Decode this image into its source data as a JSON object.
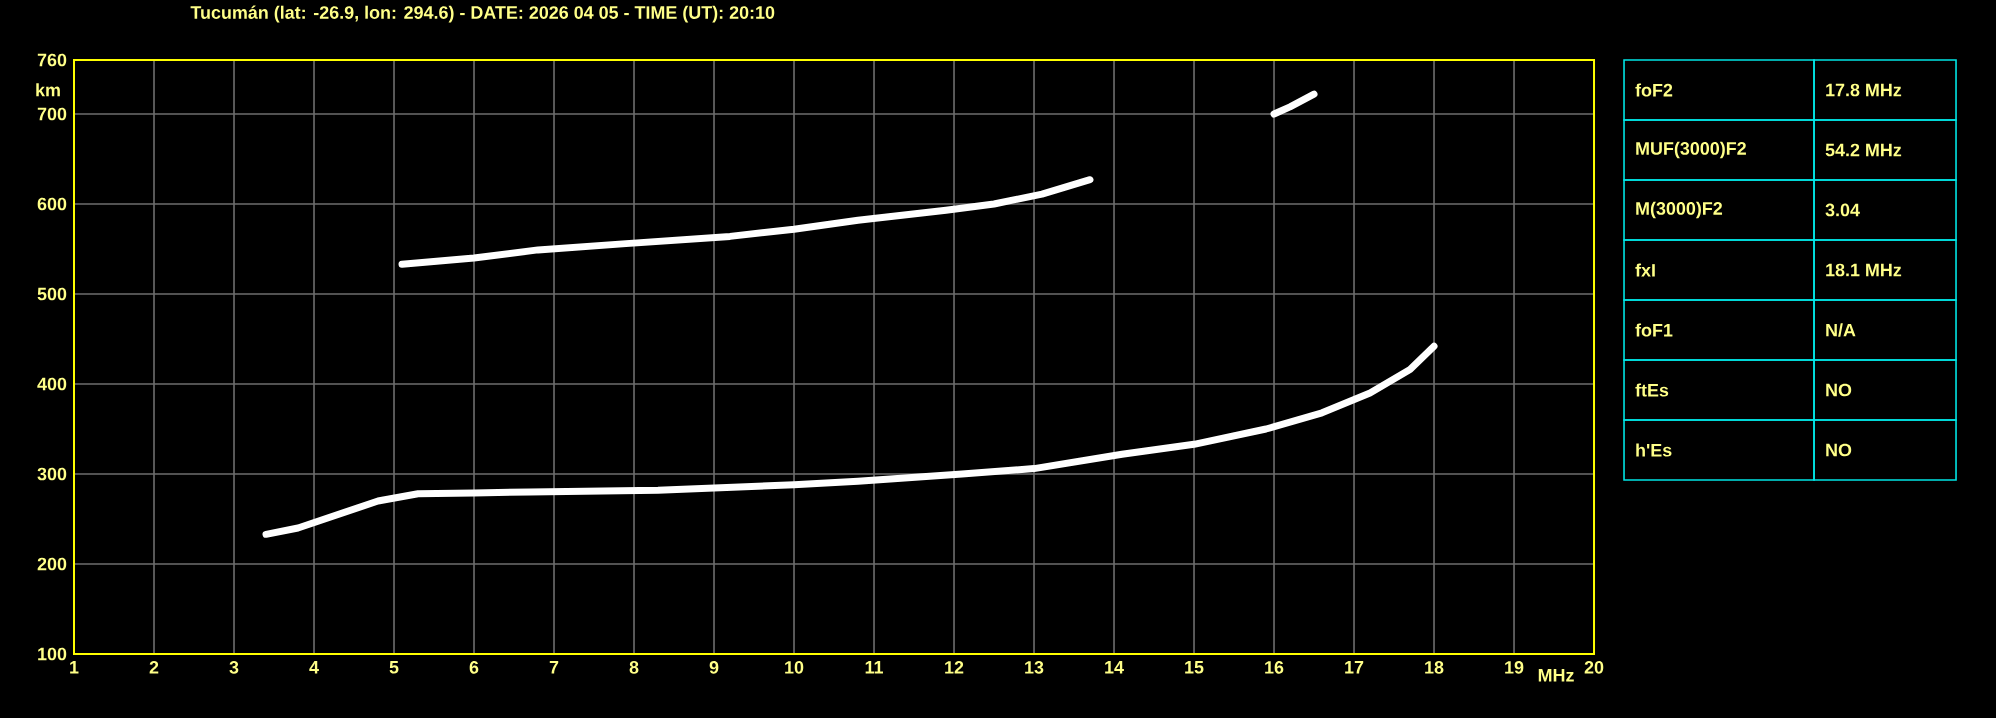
{
  "chart_data": {
    "type": "line",
    "title": "Tucumán (lat: -26.9, lon: 294.6) - DATE: 2026 04 05 - TIME (UT): 20:10",
    "xlabel": "MHz",
    "ylabel": "km",
    "xlim": [
      1,
      20
    ],
    "ylim": [
      100,
      760
    ],
    "xticks": [
      1,
      2,
      3,
      4,
      5,
      6,
      7,
      8,
      9,
      10,
      11,
      12,
      13,
      14,
      15,
      16,
      17,
      18,
      19,
      20
    ],
    "yticks": [
      100,
      200,
      300,
      400,
      500,
      600,
      700,
      760
    ],
    "grid": true,
    "marker": "none",
    "line_style": "solid",
    "series": [
      {
        "color": "#ffffff",
        "x": [
          3.4,
          3.8,
          4.3,
          4.8,
          5.3,
          6.0,
          6.7,
          8.3,
          10.0,
          10.8,
          12.1,
          13.0,
          14.1,
          15.0,
          15.9,
          16.6,
          17.2,
          17.7,
          18.0
        ],
        "values": [
          233,
          240,
          255,
          270,
          278,
          279,
          280,
          282,
          288,
          292,
          300,
          306,
          322,
          333,
          350,
          368,
          390,
          416,
          442
        ]
      },
      {
        "color": "#ffffff",
        "x": [
          5.1,
          6.0,
          6.8,
          7.9,
          9.2,
          10.0,
          10.8,
          11.9,
          12.5,
          13.1,
          13.7
        ],
        "values": [
          533,
          540,
          549,
          556,
          564,
          572,
          582,
          593,
          600,
          611,
          627
        ]
      },
      {
        "color": "#ffffff",
        "x": [
          16.0,
          16.2,
          16.5
        ],
        "values": [
          700,
          708,
          722
        ]
      }
    ],
    "annotations": [
      "foF2",
      "17.8 MHz",
      "MUF(3000)F2",
      "54.2 MHz",
      "M(3000)F2",
      "3.04",
      "fxI",
      "18.1 MHz",
      "foF1",
      "N/A",
      "ftEs",
      "NO",
      "h'Es",
      "NO"
    ]
  }
}
